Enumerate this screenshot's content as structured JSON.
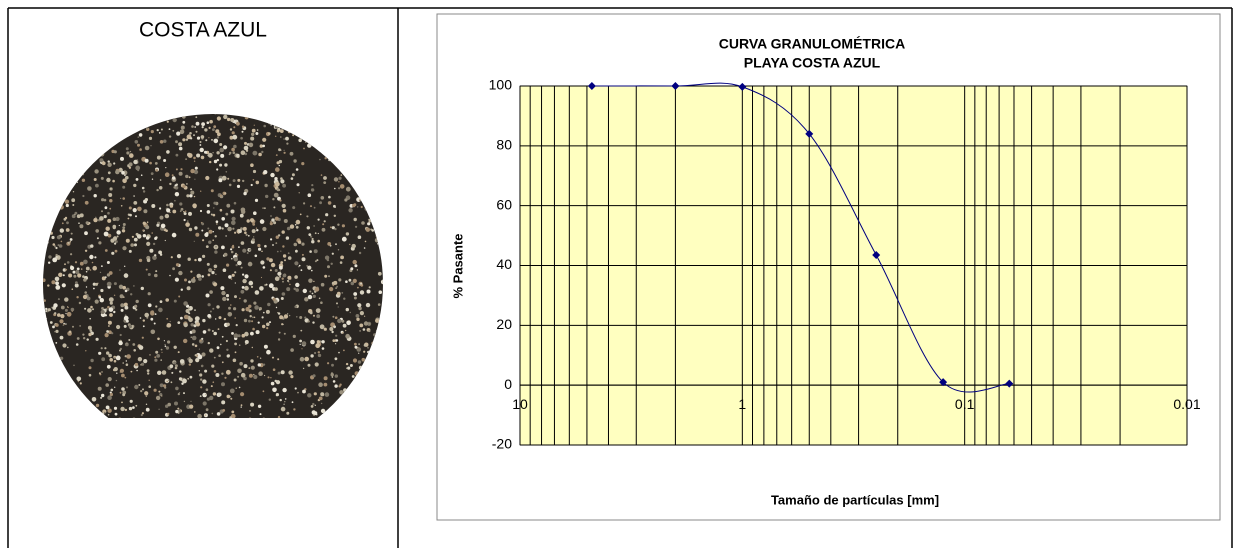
{
  "cell": {
    "title": "COSTA AZUL"
  },
  "chart_data": {
    "type": "line",
    "title": [
      "CURVA GRANULOMÉTRICA",
      "PLAYA COSTA AZUL"
    ],
    "xlabel": "Tamaño de partículas [mm]",
    "ylabel": "% Pasante",
    "x": [
      4.75,
      2.0,
      1.0,
      0.5,
      0.25,
      0.125,
      0.063
    ],
    "series": [
      {
        "name": "Costa Azul",
        "color": "#000080",
        "values": [
          100,
          100,
          99.7,
          84,
          43.5,
          1,
          0.5
        ]
      }
    ],
    "xscale": "log",
    "xreversed": true,
    "xlim": [
      10,
      0.01
    ],
    "xticks": [
      10,
      1,
      0.1,
      0.01
    ],
    "ylim": [
      -20,
      100
    ],
    "yticks": [
      -20,
      0,
      20,
      40,
      60,
      80,
      100
    ],
    "grid": true,
    "background": "#ffffc0"
  }
}
